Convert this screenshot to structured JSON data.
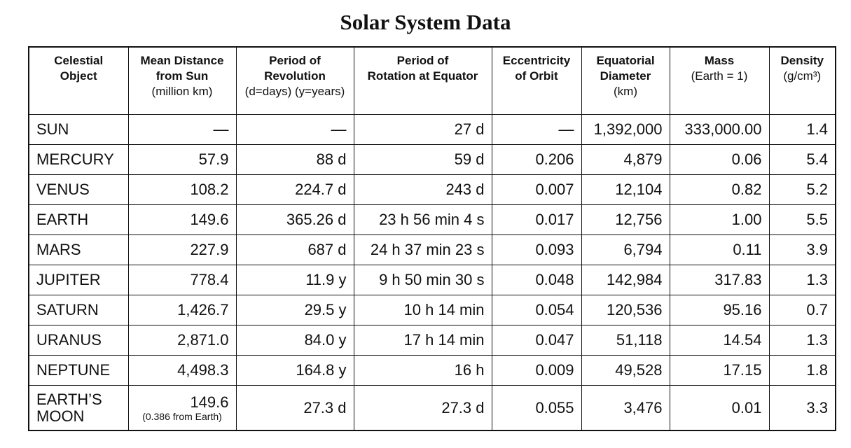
{
  "title": "Solar System Data",
  "table": {
    "header": [
      {
        "lines": [
          "Celestial",
          "Object"
        ]
      },
      {
        "lines": [
          "Mean Distance",
          "from Sun"
        ],
        "units": "(million km)"
      },
      {
        "lines": [
          "Period of",
          "Revolution"
        ],
        "units": "(d=days)  (y=years)"
      },
      {
        "lines": [
          "Period of",
          "Rotation at Equator"
        ]
      },
      {
        "lines": [
          "Eccentricity",
          "of Orbit"
        ]
      },
      {
        "lines": [
          "Equatorial",
          "Diameter"
        ],
        "units": "(km)"
      },
      {
        "lines": [
          "Mass"
        ],
        "units": "(Earth = 1)"
      },
      {
        "lines": [
          "Density"
        ],
        "units": "(g/cm³)"
      }
    ],
    "rows": [
      [
        "SUN",
        "—",
        "—",
        "27 d",
        "—",
        "1,392,000",
        "333,000.00",
        "1.4"
      ],
      [
        "MERCURY",
        "57.9",
        "88 d",
        "59 d",
        "0.206",
        "4,879",
        "0.06",
        "5.4"
      ],
      [
        "VENUS",
        "108.2",
        "224.7 d",
        "243 d",
        "0.007",
        "12,104",
        "0.82",
        "5.2"
      ],
      [
        "EARTH",
        "149.6",
        "365.26 d",
        "23 h 56 min 4 s",
        "0.017",
        "12,756",
        "1.00",
        "5.5"
      ],
      [
        "MARS",
        "227.9",
        "687 d",
        "24 h 37 min 23 s",
        "0.093",
        "6,794",
        "0.11",
        "3.9"
      ],
      [
        "JUPITER",
        "778.4",
        "11.9 y",
        "9 h 50 min 30 s",
        "0.048",
        "142,984",
        "317.83",
        "1.3"
      ],
      [
        "SATURN",
        "1,426.7",
        "29.5 y",
        "10 h 14 min",
        "0.054",
        "120,536",
        "95.16",
        "0.7"
      ],
      [
        "URANUS",
        "2,871.0",
        "84.0 y",
        "17 h 14 min",
        "0.047",
        "51,118",
        "14.54",
        "1.3"
      ],
      [
        "NEPTUNE",
        "4,498.3",
        "164.8 y",
        "16 h",
        "0.009",
        "49,528",
        "17.15",
        "1.8"
      ],
      [
        [
          "EARTH’S",
          "MOON"
        ],
        {
          "value": "149.6",
          "note": "(0.386 from Earth)"
        },
        "27.3 d",
        "27.3 d",
        "0.055",
        "3,476",
        "0.01",
        "3.3"
      ]
    ]
  }
}
